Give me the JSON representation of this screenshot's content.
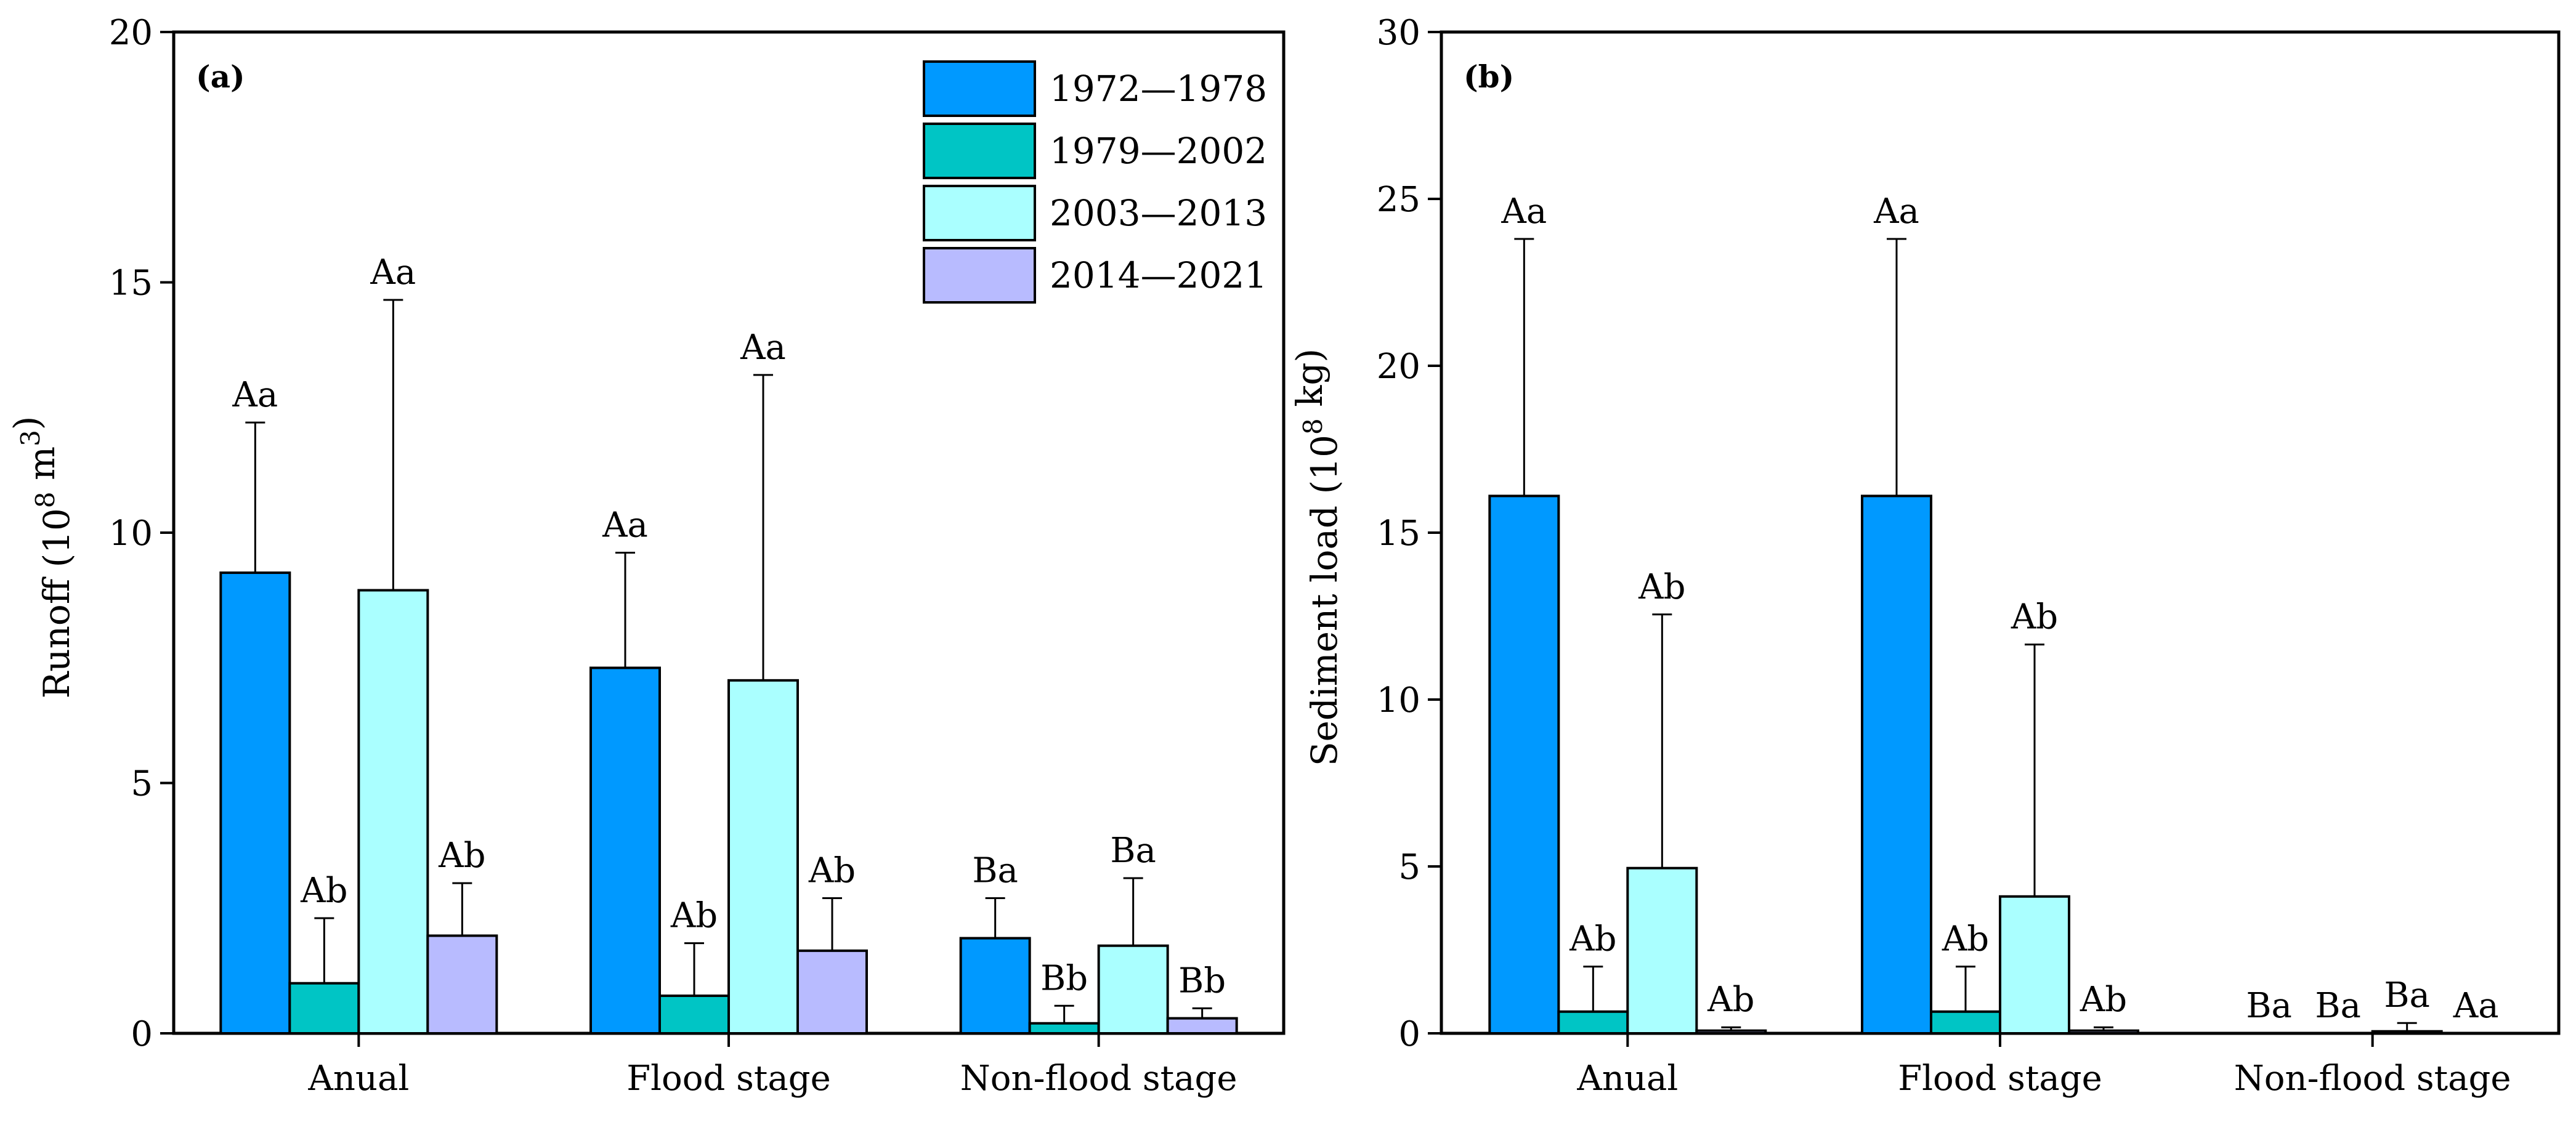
{
  "chart_data": [
    {
      "type": "bar",
      "panel_label": "(a)",
      "ylabel": "Runoff (10",
      "ylabel_sup1": "8",
      "ylabel_mid": " m",
      "ylabel_sup2": "3",
      "ylabel_end": ")",
      "ylim": [
        0,
        20
      ],
      "yticks": [
        "0",
        "5",
        "10",
        "15",
        "20"
      ],
      "categories": [
        "Anual",
        "Flood stage",
        "Non-flood stage"
      ],
      "legend": [
        "1972—1978",
        "1979—2002",
        "2003—2013",
        "2014—2021"
      ],
      "series": [
        {
          "name": "1972—1978",
          "color": "#0099ff",
          "values": [
            9.2,
            7.3,
            1.9
          ],
          "errors": [
            3.0,
            2.3,
            0.8
          ],
          "labels": [
            "Aa",
            "Aa",
            "Ba"
          ]
        },
        {
          "name": "1979—2002",
          "color": "#00c5c5",
          "values": [
            1.0,
            0.75,
            0.2
          ],
          "errors": [
            1.3,
            1.05,
            0.35
          ],
          "labels": [
            "Ab",
            "Ab",
            "Bb"
          ]
        },
        {
          "name": "2003—2013",
          "color": "#aaffff",
          "values": [
            8.85,
            7.05,
            1.75
          ],
          "errors": [
            5.8,
            6.1,
            1.35
          ],
          "labels": [
            "Aa",
            "Aa",
            "Ba"
          ]
        },
        {
          "name": "2014—2021",
          "color": "#b8bbff",
          "values": [
            1.95,
            1.65,
            0.3
          ],
          "errors": [
            1.05,
            1.05,
            0.2
          ],
          "labels": [
            "Ab",
            "Ab",
            "Bb"
          ]
        }
      ]
    },
    {
      "type": "bar",
      "panel_label": "(b)",
      "ylabel": "Sediment load (10",
      "ylabel_sup1": "8",
      "ylabel_mid": " kg",
      "ylabel_end": ")",
      "ylim": [
        0,
        30
      ],
      "yticks": [
        "0",
        "5",
        "10",
        "15",
        "20",
        "25",
        "30"
      ],
      "categories": [
        "Anual",
        "Flood stage",
        "Non-flood stage"
      ],
      "series": [
        {
          "name": "1972—1978",
          "color": "#0099ff",
          "values": [
            16.1,
            16.1,
            0.0
          ],
          "errors": [
            7.7,
            7.7,
            0.0
          ],
          "labels": [
            "Aa",
            "Aa",
            "Ba"
          ]
        },
        {
          "name": "1979—2002",
          "color": "#00c5c5",
          "values": [
            0.65,
            0.65,
            0.0
          ],
          "errors": [
            1.35,
            1.35,
            0.0
          ],
          "labels": [
            "Ab",
            "Ab",
            "Ba"
          ]
        },
        {
          "name": "2003—2013",
          "color": "#aaffff",
          "values": [
            4.95,
            4.1,
            0.06
          ],
          "errors": [
            7.6,
            7.55,
            0.25
          ],
          "labels": [
            "Ab",
            "Ab",
            "Ba"
          ]
        },
        {
          "name": "2014—2021",
          "color": "#b8bbff",
          "values": [
            0.08,
            0.08,
            0.0
          ],
          "errors": [
            0.1,
            0.1,
            0.0
          ],
          "labels": [
            "Ab",
            "Ab",
            "Aa"
          ]
        }
      ]
    }
  ]
}
